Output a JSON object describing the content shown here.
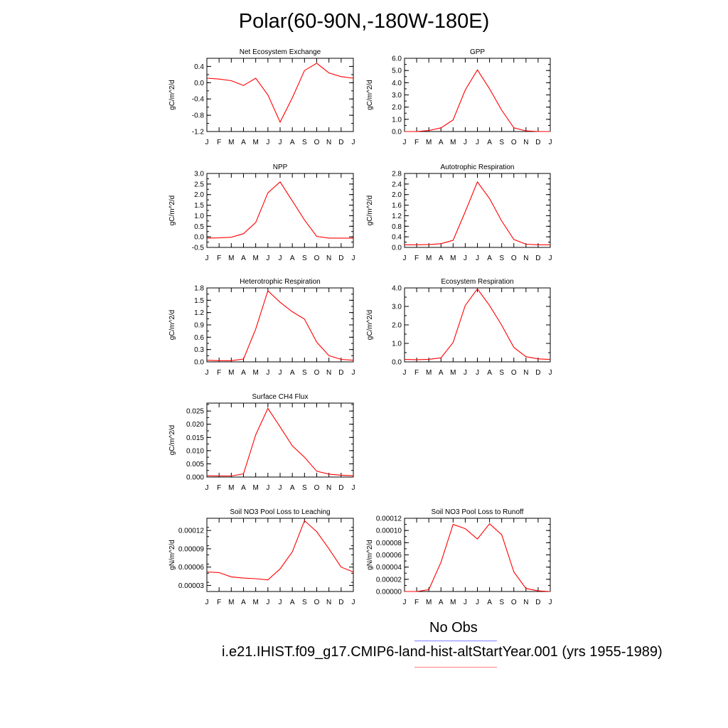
{
  "page_title": "Polar(60-90N,-180W-180E)",
  "months": [
    "J",
    "F",
    "M",
    "A",
    "M",
    "J",
    "J",
    "A",
    "S",
    "O",
    "N",
    "D",
    "J"
  ],
  "colors": {
    "model_line": "#ff0000",
    "obs_line": "#8080ff"
  },
  "legend": {
    "obs_label": "No Obs",
    "model_label": "i.e21.IHIST.f09_g17.CMIP6-land-hist-altStartYear.001 (yrs 1955-1989)"
  },
  "chart_data": [
    {
      "id": "nee",
      "type": "line",
      "title": "Net Ecosystem Exchange",
      "ylabel": "gC/m^2/d",
      "ylim": [
        -1.2,
        0.6
      ],
      "ticks": [
        "0.4",
        "0.0",
        "-0.4",
        "-0.8",
        "-1.2"
      ],
      "values": [
        0.11,
        0.09,
        0.05,
        -0.07,
        0.11,
        -0.3,
        -0.97,
        -0.37,
        0.3,
        0.48,
        0.24,
        0.15,
        0.11
      ]
    },
    {
      "id": "gpp",
      "type": "line",
      "title": "GPP",
      "ylabel": "gC/m^2/d",
      "ylim": [
        0.0,
        6.0
      ],
      "ticks": [
        "6.0",
        "5.0",
        "4.0",
        "3.0",
        "2.0",
        "1.0",
        "0.0"
      ],
      "values": [
        0.0,
        0.0,
        0.08,
        0.3,
        0.95,
        3.4,
        5.05,
        3.5,
        1.75,
        0.3,
        0.05,
        0.0,
        0.0
      ]
    },
    {
      "id": "npp",
      "type": "line",
      "title": "NPP",
      "ylabel": "gC/m^2/d",
      "ylim": [
        -0.5,
        3.0
      ],
      "ticks": [
        "3.0",
        "2.5",
        "2.0",
        "1.5",
        "1.0",
        "0.5",
        "0.0",
        "-0.5"
      ],
      "values": [
        -0.06,
        -0.05,
        -0.02,
        0.15,
        0.68,
        2.08,
        2.6,
        1.7,
        0.8,
        0.02,
        -0.06,
        -0.06,
        -0.06
      ]
    },
    {
      "id": "ar",
      "type": "line",
      "title": "Autotrophic Respiration",
      "ylabel": "gC/m^2/d",
      "ylim": [
        0.0,
        2.8
      ],
      "ticks": [
        "2.8",
        "2.4",
        "2.0",
        "1.6",
        "1.2",
        "0.8",
        "0.4",
        "0.0"
      ],
      "values": [
        0.1,
        0.1,
        0.11,
        0.14,
        0.27,
        1.35,
        2.48,
        1.85,
        1.0,
        0.3,
        0.12,
        0.1,
        0.1
      ]
    },
    {
      "id": "hr",
      "type": "line",
      "title": "Heterotrophic Respiration",
      "ylabel": "gC/m^2/d",
      "ylim": [
        0.0,
        1.8
      ],
      "ticks": [
        "1.8",
        "1.5",
        "1.2",
        "0.9",
        "0.6",
        "0.3",
        "0.0"
      ],
      "values": [
        0.04,
        0.03,
        0.03,
        0.07,
        0.8,
        1.73,
        1.45,
        1.22,
        1.04,
        0.48,
        0.15,
        0.06,
        0.04
      ]
    },
    {
      "id": "er",
      "type": "line",
      "title": "Ecosystem Respiration",
      "ylabel": "gC/m^2/d",
      "ylim": [
        0.0,
        4.0
      ],
      "ticks": [
        "4.0",
        "3.0",
        "2.0",
        "1.0",
        "0.0"
      ],
      "values": [
        0.13,
        0.12,
        0.14,
        0.22,
        1.05,
        3.05,
        3.95,
        3.05,
        1.98,
        0.78,
        0.28,
        0.16,
        0.13
      ]
    },
    {
      "id": "ch4",
      "type": "line",
      "title": "Surface CH4 Flux",
      "ylabel": "gC/m^2/d",
      "ylim": [
        0.0,
        0.028
      ],
      "ticks": [
        "0.025",
        "0.020",
        "0.015",
        "0.010",
        "0.005",
        "0.000"
      ],
      "values": [
        0.0005,
        0.0004,
        0.0004,
        0.0012,
        0.016,
        0.026,
        0.019,
        0.0118,
        0.0075,
        0.0022,
        0.0011,
        0.0007,
        0.0005
      ]
    },
    {
      "id": "no3_leach",
      "type": "line",
      "title": "Soil NO3 Pool Loss to Leaching",
      "ylabel": "gN/m^2/d",
      "ylim": [
        2e-05,
        0.00014
      ],
      "ticks": [
        "0.00012",
        "0.00009",
        "0.00006",
        "0.00003"
      ],
      "values": [
        5.2e-05,
        5.1e-05,
        4.4e-05,
        4.2e-05,
        4.1e-05,
        3.9e-05,
        5.7e-05,
        8.5e-05,
        0.000136,
        0.000118,
        9e-05,
        6e-05,
        5.2e-05
      ]
    },
    {
      "id": "no3_runoff",
      "type": "line",
      "title": "Soil NO3 Pool Loss to Runoff",
      "ylabel": "gN/m^2/d",
      "ylim": [
        0.0,
        0.00012
      ],
      "ticks": [
        "0.00012",
        "0.00010",
        "0.00008",
        "0.00006",
        "0.00004",
        "0.00002",
        "0.00000"
      ],
      "values": [
        0.0,
        0.0,
        3e-06,
        4.8e-05,
        0.00011,
        0.000103,
        8.6e-05,
        0.000111,
        9.3e-05,
        3.2e-05,
        5e-06,
        1e-06,
        0.0
      ]
    }
  ]
}
